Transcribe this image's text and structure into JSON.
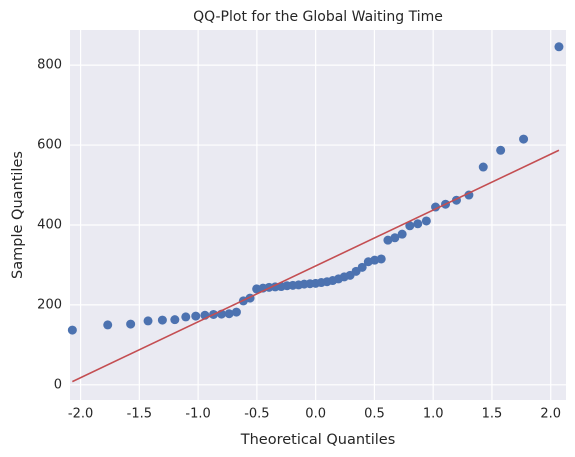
{
  "chart_data": {
    "type": "scatter",
    "title": "QQ-Plot for the Global Waiting Time",
    "x_label": "Theoretical Quantiles",
    "y_label": "Sample Quantiles",
    "color": "#4c72b0",
    "grid": true,
    "xlim": [
      -2.09,
      2.13
    ],
    "ylim": [
      -38,
      888
    ],
    "xticks": [
      {
        "value": -2,
        "label": "-2.0"
      },
      {
        "value": -1.5,
        "label": "-1.5"
      },
      {
        "value": -1,
        "label": "-1.0"
      },
      {
        "value": -0.5,
        "label": "-0.5"
      },
      {
        "value": 0,
        "label": "0.0"
      },
      {
        "value": 0.5,
        "label": "0.5"
      },
      {
        "value": 1,
        "label": "1.0"
      },
      {
        "value": 1.5,
        "label": "1.5"
      },
      {
        "value": 2,
        "label": "2.0"
      }
    ],
    "yticks": [
      0,
      200,
      400,
      600,
      800
    ],
    "x": [
      -2.07,
      -1.769,
      -1.574,
      -1.426,
      -1.304,
      -1.198,
      -1.105,
      -1.02,
      -0.942,
      -0.869,
      -0.801,
      -0.736,
      -0.674,
      -0.615,
      -0.558,
      -0.502,
      -0.448,
      -0.396,
      -0.344,
      -0.293,
      -0.243,
      -0.194,
      -0.145,
      -0.097,
      -0.048,
      0,
      0.048,
      0.097,
      0.145,
      0.194,
      0.243,
      0.293,
      0.344,
      0.396,
      0.448,
      0.502,
      0.558,
      0.615,
      0.674,
      0.736,
      0.801,
      0.869,
      0.942,
      1.02,
      1.105,
      1.198,
      1.304,
      1.426,
      1.574,
      1.769,
      2.07
    ],
    "values": [
      137,
      150,
      152,
      160,
      162,
      163,
      170,
      172,
      174,
      176,
      177,
      178,
      182,
      210,
      217,
      240,
      242,
      244,
      245,
      246,
      248,
      249,
      250,
      252,
      253,
      254,
      256,
      258,
      261,
      265,
      270,
      274,
      284,
      294,
      308,
      312,
      315,
      362,
      368,
      377,
      398,
      403,
      410,
      445,
      452,
      462,
      475,
      545,
      587,
      615,
      846
    ],
    "reference_line": {
      "color": "#c44e52",
      "x": [
        -2.07,
        2.07
      ],
      "y": [
        8,
        587
      ]
    }
  }
}
